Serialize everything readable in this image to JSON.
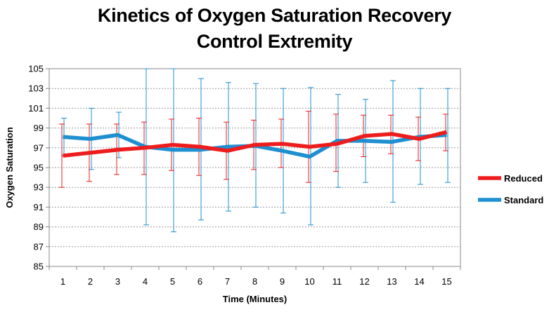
{
  "chart_data": {
    "type": "line",
    "title_line1": "Kinetics of Oxygen Saturation Recovery",
    "title_line2": "Control Extremity",
    "xlabel": "Time (Minutes)",
    "ylabel": "Oxygen Saturation",
    "x": [
      1,
      2,
      3,
      4,
      5,
      6,
      7,
      8,
      9,
      10,
      11,
      12,
      13,
      14,
      15
    ],
    "ylim": [
      85,
      105
    ],
    "yticks": [
      85,
      87,
      89,
      91,
      93,
      95,
      97,
      99,
      101,
      103,
      105
    ],
    "grid": true,
    "legend_position": "right",
    "series": [
      {
        "name": "Reduced",
        "color": "#ee1c1c",
        "values": [
          96.2,
          96.5,
          96.8,
          97.0,
          97.3,
          97.1,
          96.7,
          97.3,
          97.4,
          97.1,
          97.4,
          98.2,
          98.4,
          97.9,
          98.6
        ],
        "err_low": [
          93.0,
          93.6,
          94.3,
          94.3,
          94.7,
          94.2,
          93.8,
          94.8,
          95.0,
          93.5,
          94.6,
          96.1,
          96.4,
          95.7,
          96.7
        ],
        "err_high": [
          99.4,
          99.4,
          99.4,
          99.6,
          99.9,
          100.0,
          99.6,
          99.8,
          99.9,
          100.7,
          100.4,
          100.3,
          100.3,
          100.1,
          100.4
        ]
      },
      {
        "name": "Standard",
        "color": "#1e8fd0",
        "values": [
          98.1,
          97.9,
          98.3,
          97.1,
          96.8,
          96.8,
          97.1,
          97.2,
          96.7,
          96.1,
          97.7,
          97.7,
          97.6,
          98.1,
          98.3
        ],
        "err_low": [
          96.2,
          94.8,
          96.0,
          89.2,
          88.5,
          89.7,
          90.6,
          91.0,
          90.4,
          89.2,
          93.0,
          93.5,
          91.5,
          93.3,
          93.5
        ],
        "err_high": [
          100.0,
          101.0,
          100.6,
          105.0,
          105.0,
          104.0,
          103.6,
          103.5,
          103.0,
          103.1,
          102.4,
          101.9,
          103.8,
          103.0,
          103.0
        ]
      }
    ]
  }
}
